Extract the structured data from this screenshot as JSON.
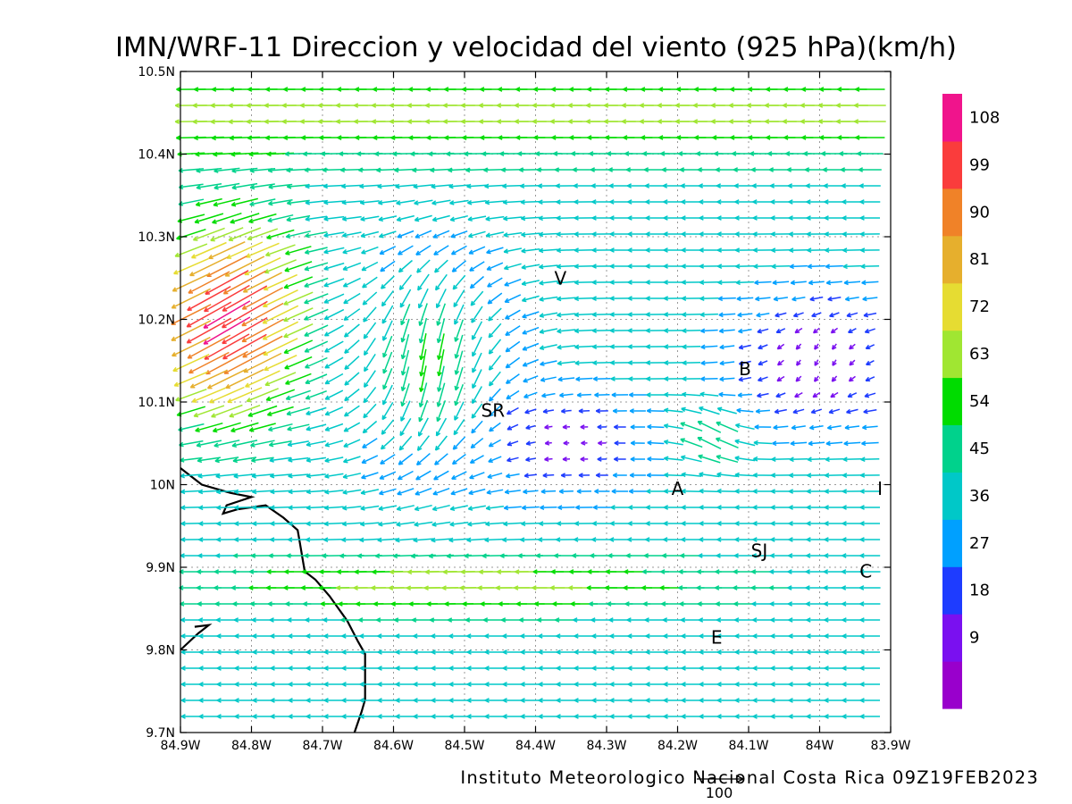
{
  "title": "IMN/WRF-11 Direccion y velocidad del viento (925 hPa)(km/h)",
  "footer": "Instituto Meteorologico Nacional Costa Rica 09Z19FEB2023",
  "reference_vector_label": "100",
  "axes": {
    "lon_labels": [
      "84.9W",
      "84.8W",
      "84.7W",
      "84.6W",
      "84.5W",
      "84.4W",
      "84.3W",
      "84.2W",
      "84.1W",
      "84W",
      "83.9W"
    ],
    "lat_labels": [
      "9.7N",
      "9.8N",
      "9.9N",
      "10N",
      "10.1N",
      "10.2N",
      "10.3N",
      "10.4N",
      "10.5N"
    ],
    "lon_range": [
      -84.9,
      -83.9
    ],
    "lat_range": [
      9.7,
      10.5
    ],
    "grid": true
  },
  "stations": [
    {
      "label": "V",
      "lon": -84.365,
      "lat": 10.25
    },
    {
      "label": "B",
      "lon": -84.105,
      "lat": 10.14
    },
    {
      "label": "SR",
      "lon": -84.46,
      "lat": 10.09
    },
    {
      "label": "A",
      "lon": -84.2,
      "lat": 9.995
    },
    {
      "label": "SJ",
      "lon": -84.085,
      "lat": 9.92
    },
    {
      "label": "C",
      "lon": -83.935,
      "lat": 9.895
    },
    {
      "label": "E",
      "lon": -84.145,
      "lat": 9.815
    },
    {
      "label": "I",
      "lon": -83.915,
      "lat": 9.995
    }
  ],
  "colorbar": {
    "labels": [
      "9",
      "18",
      "27",
      "36",
      "45",
      "54",
      "63",
      "72",
      "81",
      "90",
      "99",
      "108"
    ],
    "colors": [
      "#9900cc",
      "#7a10f0",
      "#1e3cff",
      "#00a0ff",
      "#00c8c8",
      "#00d28c",
      "#00dc00",
      "#a0e632",
      "#e6dc32",
      "#e6af2d",
      "#f08228",
      "#fa3c3c",
      "#f0148c"
    ]
  },
  "coastline": [
    [
      -84.9,
      10.02
    ],
    [
      -84.87,
      10.0
    ],
    [
      -84.83,
      9.99
    ],
    [
      -84.8,
      9.985
    ],
    [
      -84.835,
      9.975
    ],
    [
      -84.84,
      9.965
    ],
    [
      -84.82,
      9.97
    ],
    [
      -84.78,
      9.975
    ],
    [
      -84.755,
      9.96
    ],
    [
      -84.735,
      9.945
    ],
    [
      -84.732,
      9.93
    ],
    [
      -84.725,
      9.895
    ],
    [
      -84.71,
      9.885
    ],
    [
      -84.69,
      9.865
    ],
    [
      -84.665,
      9.835
    ],
    [
      -84.65,
      9.81
    ],
    [
      -84.64,
      9.795
    ],
    [
      -84.64,
      9.77
    ],
    [
      -84.64,
      9.74
    ],
    [
      -84.645,
      9.725
    ],
    [
      -84.655,
      9.7
    ]
  ],
  "coast_inlet": [
    [
      -84.9,
      9.8
    ],
    [
      -84.875,
      9.82
    ],
    [
      -84.86,
      9.83
    ],
    [
      -84.88,
      9.828
    ]
  ]
}
